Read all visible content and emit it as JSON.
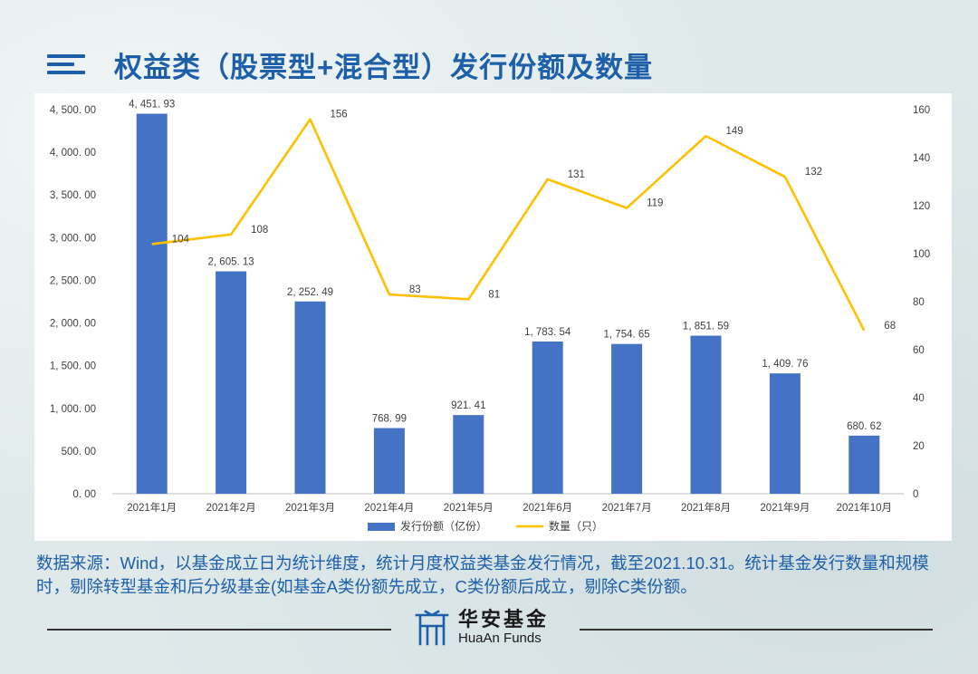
{
  "page": {
    "title": "权益类（股票型+混合型）发行份额及数量",
    "note": "数据来源：Wind，以基金成立日为统计维度，统计月度权益类基金发行情况，截至2021.10.31。统计基金发行数量和规模时，剔除转型基金和后分级基金(如基金A类份额先成立，C类份额后成立，剔除C类份额。"
  },
  "brand": {
    "name_cn": "华安基金",
    "name_en": "HuaAn Funds",
    "logo_icon": "huaan-logo-icon"
  },
  "icons": {
    "menu": "menu-icon"
  },
  "colors": {
    "title": "#1d5fa8",
    "bar": "#4472c4",
    "line": "#ffc000"
  },
  "chart_data": {
    "type": "bar",
    "categories": [
      "2021年1月",
      "2021年2月",
      "2021年3月",
      "2021年4月",
      "2021年5月",
      "2021年6月",
      "2021年7月",
      "2021年8月",
      "2021年9月",
      "2021年10月"
    ],
    "series": [
      {
        "name": "发行份额（亿份）",
        "type": "bar",
        "axis": "left",
        "values": [
          4451.93,
          2605.13,
          2252.49,
          768.99,
          921.41,
          1783.54,
          1754.65,
          1851.59,
          1409.76,
          680.62
        ],
        "labels": [
          "4, 451. 93",
          "2, 605. 13",
          "2, 252. 49",
          "768. 99",
          "921. 41",
          "1, 783. 54",
          "1, 754. 65",
          "1, 851. 59",
          "1, 409. 76",
          "680. 62"
        ]
      },
      {
        "name": "数量（只）",
        "type": "line",
        "axis": "right",
        "values": [
          104,
          108,
          156,
          83,
          81,
          131,
          119,
          149,
          132,
          68
        ]
      }
    ],
    "y_left": {
      "min": 0,
      "max": 4500,
      "ticks": [
        0,
        500,
        1000,
        1500,
        2000,
        2500,
        3000,
        3500,
        4000,
        4500
      ],
      "tick_labels": [
        "0. 00",
        "500. 00",
        "1, 000. 00",
        "1, 500. 00",
        "2, 000. 00",
        "2, 500. 00",
        "3, 000. 00",
        "3, 500. 00",
        "4, 000. 00",
        "4, 500. 00"
      ]
    },
    "y_right": {
      "min": 0,
      "max": 160,
      "ticks": [
        0,
        20,
        40,
        60,
        80,
        100,
        120,
        140,
        160
      ],
      "tick_labels": [
        "0",
        "20",
        "40",
        "60",
        "80",
        "100",
        "120",
        "140",
        "160"
      ]
    },
    "grid": false,
    "legend_position": "bottom-center"
  }
}
